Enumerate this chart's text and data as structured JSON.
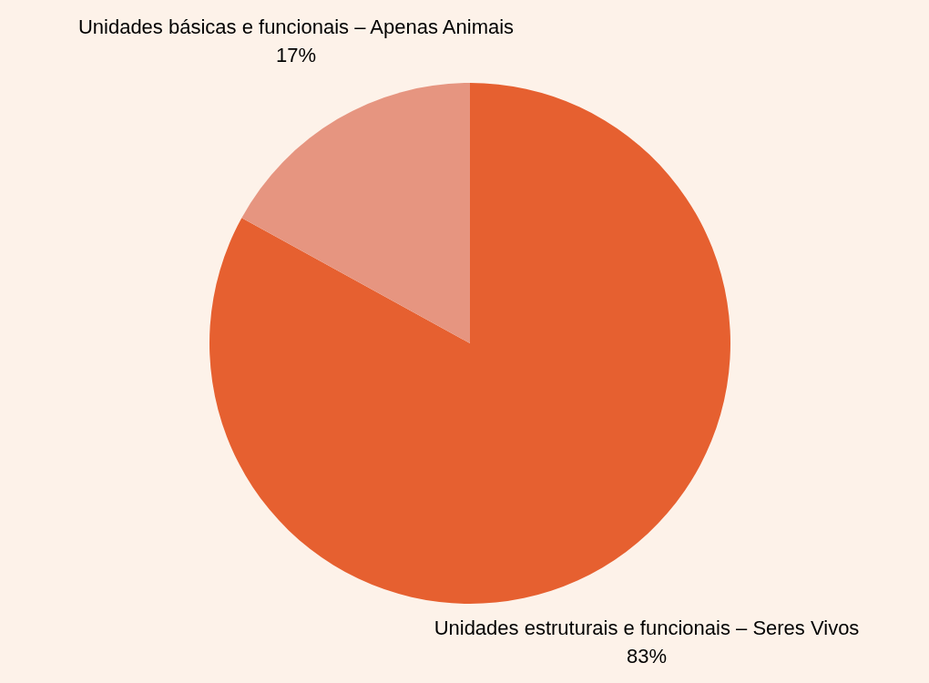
{
  "chart_data": {
    "type": "pie",
    "categories": [
      "Unidades estruturais e funcionais – Seres Vivos",
      "Unidades básicas e funcionais – Apenas Animais"
    ],
    "values": [
      83,
      17
    ],
    "value_labels": [
      "83%",
      "17%"
    ],
    "colors": [
      "#e66030",
      "#e69580"
    ],
    "legend": false
  }
}
